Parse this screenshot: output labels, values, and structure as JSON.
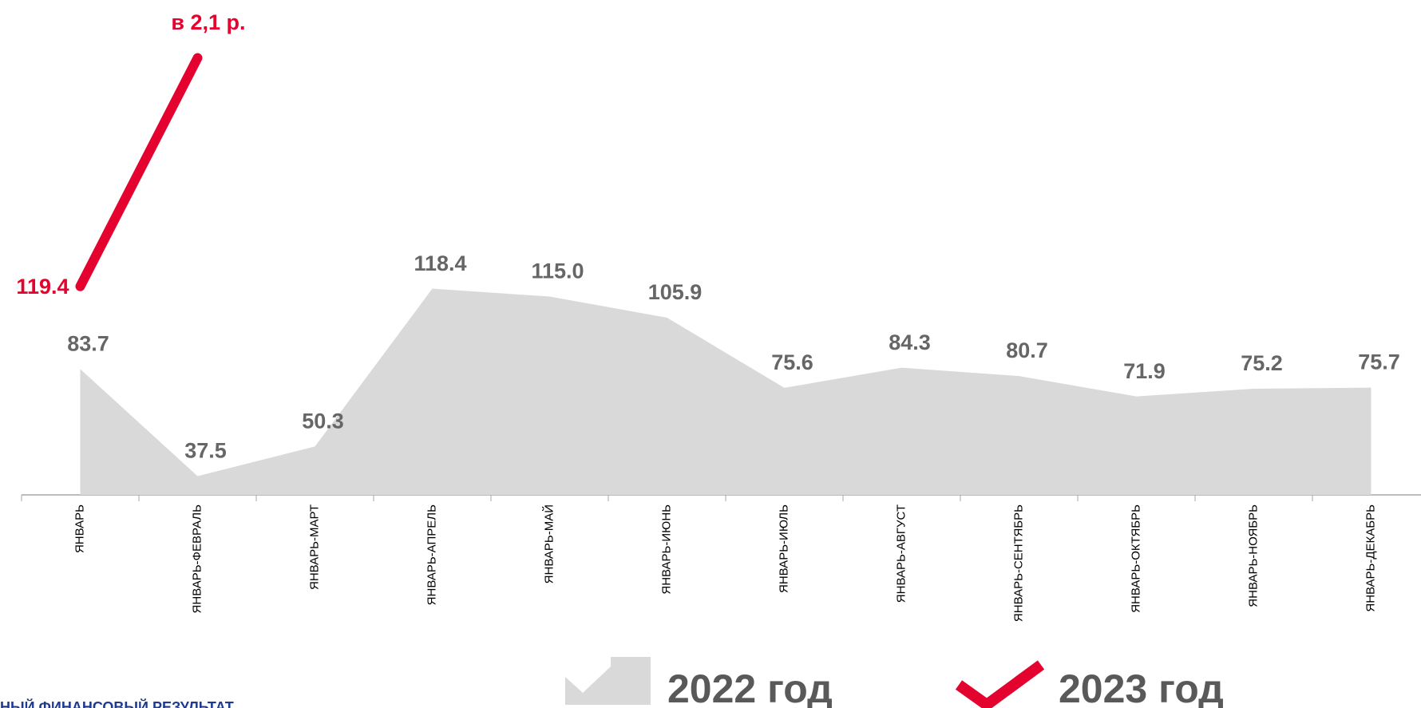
{
  "chart_data": {
    "type": "area-line",
    "categories": [
      "ЯНВАРЬ",
      "ЯНВАРЬ-ФЕВРАЛЬ",
      "ЯНВАРЬ-МАРТ",
      "ЯНВАРЬ-АПРЕЛЬ",
      "ЯНВАРЬ-МАЙ",
      "ЯНВАРЬ-ИЮНЬ",
      "ЯНВАРЬ-ИЮЛЬ",
      "ЯНВАРЬ-АВГУСТ",
      "ЯНВАРЬ-СЕНТЯБРЬ",
      "ЯНВАРЬ-ОКТЯБРЬ",
      "ЯНВАРЬ-НОЯБРЬ",
      "ЯНВАРЬ-ДЕКАБРЬ"
    ],
    "series": [
      {
        "name": "2022 год",
        "kind": "area",
        "color": "#d9d9d9",
        "values": [
          83.7,
          37.5,
          50.3,
          118.4,
          115.0,
          105.9,
          75.6,
          84.3,
          80.7,
          71.9,
          75.2,
          75.7
        ],
        "value_labels": [
          "83.7",
          "37.5",
          "50.3",
          "118.4",
          "115.0",
          "105.9",
          "75.6",
          "84.3",
          "80.7",
          "71.9",
          "75.2",
          "75.7"
        ]
      },
      {
        "name": "2023 год",
        "kind": "line",
        "color": "#e4032e",
        "values": [
          119.4,
          218,
          null,
          null,
          null,
          null,
          null,
          null,
          null,
          null,
          null,
          null
        ],
        "value_labels": [
          "119.4",
          null,
          null,
          null,
          null,
          null,
          null,
          null,
          null,
          null,
          null,
          null
        ]
      }
    ],
    "annotation": "в 2,1 р.",
    "ylim": [
      29.4,
      243
    ],
    "footer_text": "НЫЙ ФИНАНСОВЫЙ РЕЗУЛЬТАТ"
  }
}
